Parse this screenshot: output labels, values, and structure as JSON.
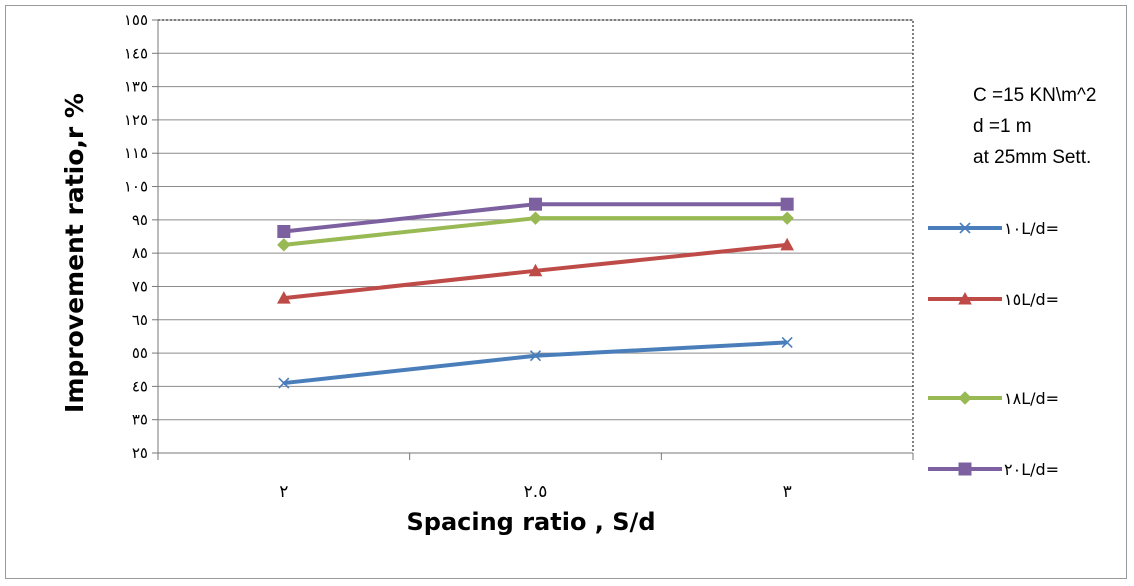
{
  "chart_data": {
    "type": "line",
    "title": "",
    "xlabel": "Spacing ratio , S/d",
    "ylabel": "Improvement ratio,r %",
    "categories": [
      "٢",
      "٢.٥",
      "٣"
    ],
    "x": [
      2,
      2.5,
      3
    ],
    "ylim": [
      25,
      155
    ],
    "yticks": [
      {
        "value": 25,
        "label": "٢٥"
      },
      {
        "value": 35,
        "label": "٣٥"
      },
      {
        "value": 45,
        "label": "٤٥"
      },
      {
        "value": 55,
        "label": "٥٥"
      },
      {
        "value": 65,
        "label": "٦٥"
      },
      {
        "value": 75,
        "label": "٧٥"
      },
      {
        "value": 85,
        "label": "٨٥"
      },
      {
        "value": 95,
        "label": "٩٥"
      },
      {
        "value": 105,
        "label": "١٠٥"
      },
      {
        "value": 115,
        "label": "١١٥"
      },
      {
        "value": 125,
        "label": "١٢٥"
      },
      {
        "value": 135,
        "label": "١٣٥"
      },
      {
        "value": 145,
        "label": "١٤٥"
      },
      {
        "value": 155,
        "label": "١٥٥"
      }
    ],
    "grid": true,
    "legend_position": "right",
    "annotations": [
      "C =15 KN\\m^2",
      "d =1 m",
      "at 25mm Sett."
    ],
    "series": [
      {
        "name": "١٠L/d=",
        "values": [
          46,
          54.2,
          58.2
        ],
        "color": "#4a7ebb",
        "marker": "x"
      },
      {
        "name": "١٥L/d=",
        "values": [
          71.5,
          79.7,
          87.5
        ],
        "color": "#be4b48",
        "marker": "triangle"
      },
      {
        "name": "١٨L/d=",
        "values": [
          87.5,
          95.5,
          95.5
        ],
        "color": "#98b954",
        "marker": "diamond"
      },
      {
        "name": "٢٠L/d=",
        "values": [
          91.5,
          99.7,
          99.7
        ],
        "color": "#7d60a0",
        "marker": "square"
      }
    ]
  }
}
